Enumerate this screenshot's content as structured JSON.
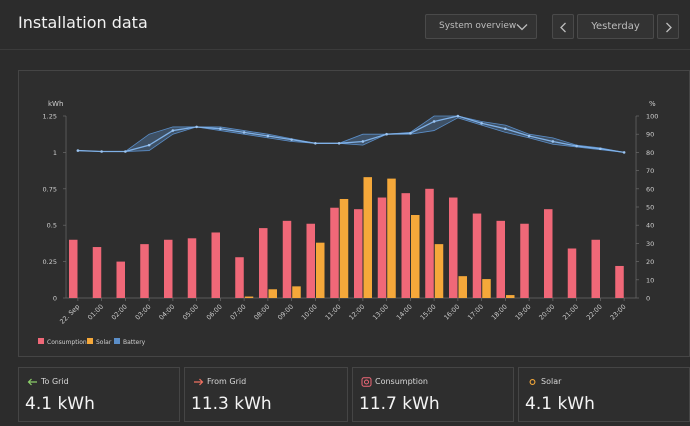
{
  "header": {
    "title": "Installation data",
    "view_select": "System overview",
    "date": "Yesterday"
  },
  "colors": {
    "consumption": "#f06878",
    "solar": "#f5a83a",
    "battery": "#5b8ec8"
  },
  "chart_data": {
    "type": "bar",
    "left_axis": {
      "unit": "kWh",
      "min": 0,
      "max": 1.25,
      "ticks": [
        "1.25",
        "1",
        "0.75",
        "0.5",
        "0.25",
        "0"
      ]
    },
    "right_axis": {
      "unit": "%",
      "min": 0,
      "max": 100,
      "ticks": [
        "100",
        "90",
        "80",
        "70",
        "60",
        "50",
        "40",
        "30",
        "20",
        "10",
        "0"
      ]
    },
    "categories": [
      "22. Sep",
      "01:00",
      "02:00",
      "03:00",
      "04:00",
      "05:00",
      "06:00",
      "07:00",
      "08:00",
      "09:00",
      "10:00",
      "11:00",
      "12:00",
      "13:00",
      "14:00",
      "15:00",
      "16:00",
      "17:00",
      "18:00",
      "19:00",
      "20:00",
      "21:00",
      "22:00",
      "23:00"
    ],
    "series": [
      {
        "name": "Consumption",
        "values": [
          0.4,
          0.35,
          0.25,
          0.37,
          0.4,
          0.41,
          0.45,
          0.28,
          0.48,
          0.53,
          0.51,
          0.62,
          0.61,
          0.69,
          0.72,
          0.75,
          0.69,
          0.58,
          0.53,
          0.51,
          0.61,
          0.34,
          0.4,
          0.22
        ]
      },
      {
        "name": "Solar",
        "values": [
          0,
          0,
          0,
          0,
          0,
          0,
          0,
          0.01,
          0.06,
          0.08,
          0.38,
          0.68,
          0.83,
          0.82,
          0.57,
          0.37,
          0.15,
          0.13,
          0.02,
          0,
          0,
          0,
          0,
          0
        ]
      },
      {
        "name": "Battery",
        "values": [
          81,
          80.5,
          80.5,
          84,
          92,
          94,
          93,
          91,
          89,
          87,
          85,
          85,
          86,
          90,
          90.5,
          97,
          100,
          96,
          93,
          89,
          86,
          83.5,
          82,
          80
        ],
        "min": [
          81,
          80.5,
          80.5,
          81,
          90,
          94,
          92,
          90,
          88,
          86,
          85,
          85,
          84,
          90,
          90,
          92,
          99,
          95,
          91,
          88,
          84.5,
          83,
          81.5,
          80
        ],
        "max": [
          81,
          80.5,
          80.5,
          90,
          94,
          94,
          94,
          92,
          90,
          87.5,
          85,
          85,
          90,
          90,
          91,
          100,
          100,
          97,
          95,
          90,
          88,
          84,
          82.5,
          80
        ]
      }
    ]
  },
  "cards": [
    {
      "label": "To Grid",
      "value": "4.1 kWh"
    },
    {
      "label": "From Grid",
      "value": "11.3 kWh"
    },
    {
      "label": "Consumption",
      "value": "11.7 kWh"
    },
    {
      "label": "Solar",
      "value": "4.1 kWh"
    }
  ]
}
